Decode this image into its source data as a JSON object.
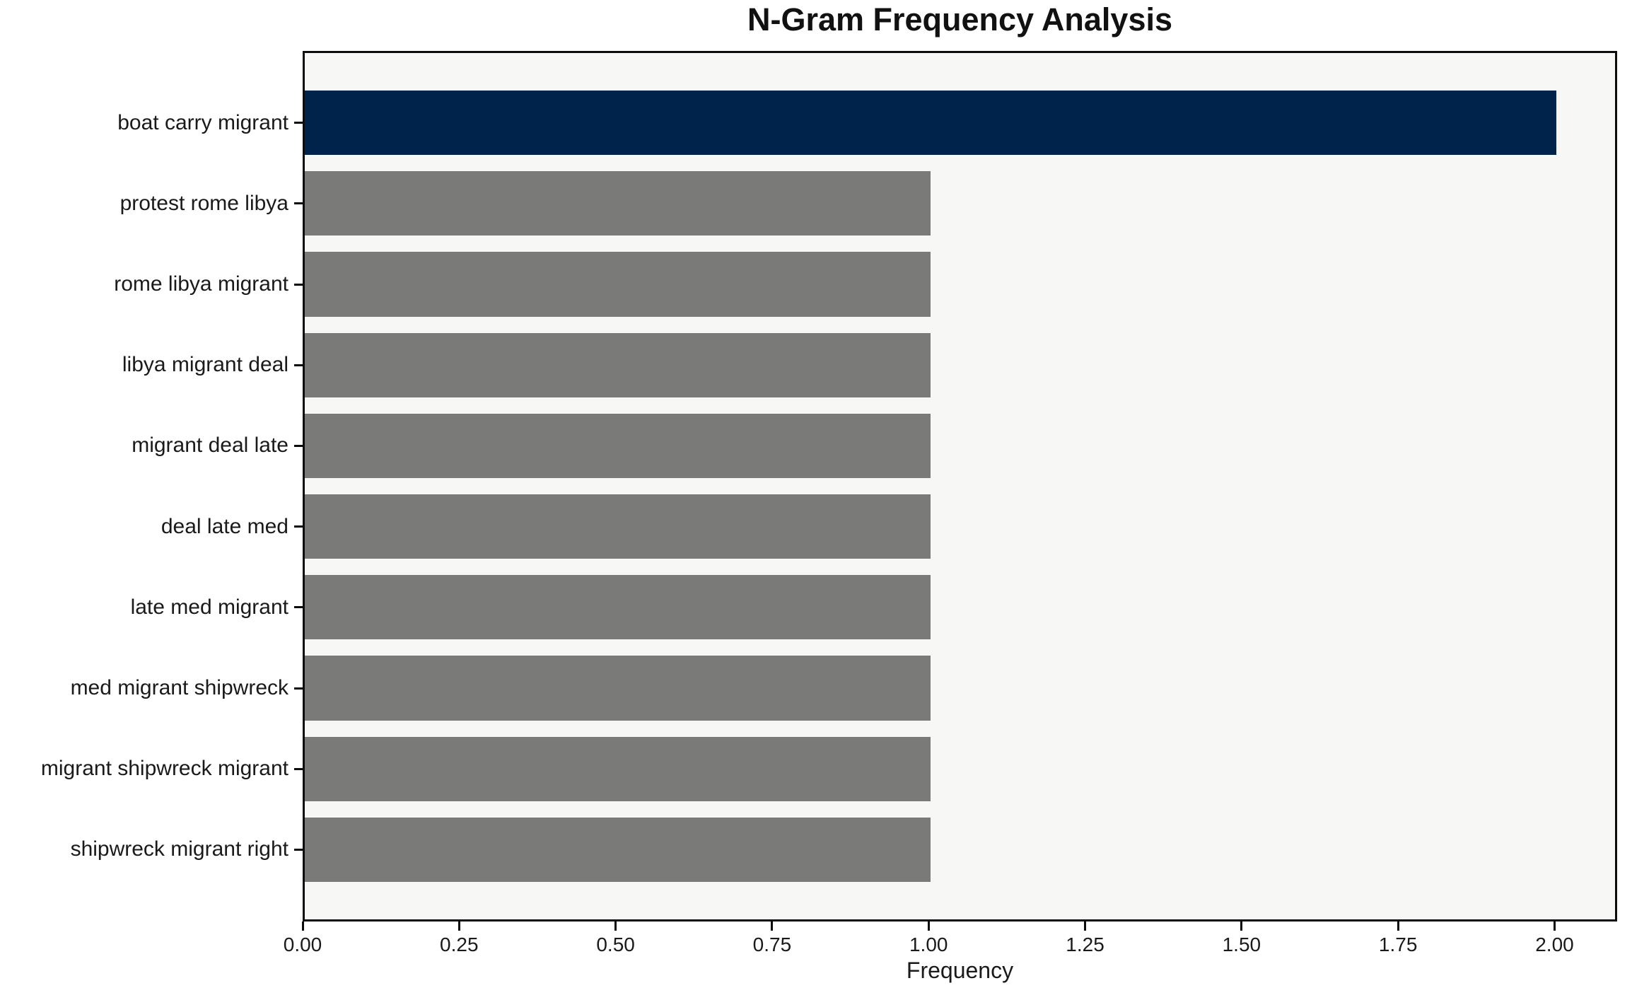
{
  "chart_data": {
    "type": "bar",
    "orientation": "horizontal",
    "title": "N-Gram Frequency Analysis",
    "xlabel": "Frequency",
    "ylabel": "",
    "categories": [
      "boat carry migrant",
      "protest rome libya",
      "rome libya migrant",
      "libya migrant deal",
      "migrant deal late",
      "deal late med",
      "late med migrant",
      "med migrant shipwreck",
      "migrant shipwreck migrant",
      "shipwreck migrant right"
    ],
    "values": [
      2,
      1,
      1,
      1,
      1,
      1,
      1,
      1,
      1,
      1
    ],
    "bar_colors": [
      "#00234c",
      "#7a7a78",
      "#7a7a78",
      "#7a7a78",
      "#7a7a78",
      "#7a7a78",
      "#7a7a78",
      "#7a7a78",
      "#7a7a78",
      "#7a7a78"
    ],
    "xlim": [
      0,
      2.1
    ],
    "xticks": [
      0,
      0.25,
      0.5,
      0.75,
      1,
      1.25,
      1.5,
      1.75,
      2
    ],
    "xtick_labels": [
      "0.00",
      "0.25",
      "0.50",
      "0.75",
      "1.00",
      "1.25",
      "1.50",
      "1.75",
      "2.00"
    ],
    "grid": false,
    "legend": null,
    "colors": {
      "highlight_bar": "#00234c",
      "default_bar": "#7a7a78",
      "plot_background": "#f7f7f6",
      "figure_background": "#ffffff",
      "spine": "#0c0c0c",
      "text": "#1a1a1a"
    }
  }
}
